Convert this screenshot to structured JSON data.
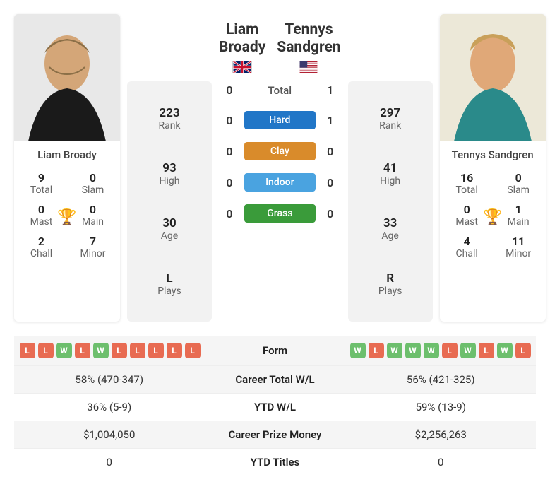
{
  "players": {
    "p1": {
      "name": "Liam Broady",
      "flag": "gb",
      "titles": {
        "total": {
          "val": "9",
          "lab": "Total"
        },
        "slam": {
          "val": "0",
          "lab": "Slam"
        },
        "mast": {
          "val": "0",
          "lab": "Mast"
        },
        "main": {
          "val": "0",
          "lab": "Main"
        },
        "chall": {
          "val": "2",
          "lab": "Chall"
        },
        "minor": {
          "val": "7",
          "lab": "Minor"
        }
      },
      "info": {
        "rank": {
          "val": "223",
          "lab": "Rank"
        },
        "high": {
          "val": "93",
          "lab": "High"
        },
        "age": {
          "val": "30",
          "lab": "Age"
        },
        "plays": {
          "val": "L",
          "lab": "Plays"
        }
      },
      "form": [
        "L",
        "L",
        "W",
        "L",
        "W",
        "L",
        "L",
        "L",
        "L",
        "L"
      ],
      "stats": {
        "career_wl": "58% (470-347)",
        "ytd_wl": "36% (5-9)",
        "prize": "$1,004,050",
        "ytd_titles": "0"
      },
      "photo_colors": {
        "bg": "#e8e8e8",
        "skin": "#d4a678",
        "shirt": "#1a1a1a",
        "hair": "#8b6f47"
      }
    },
    "p2": {
      "name": "Tennys Sandgren",
      "flag": "us",
      "titles": {
        "total": {
          "val": "16",
          "lab": "Total"
        },
        "slam": {
          "val": "0",
          "lab": "Slam"
        },
        "mast": {
          "val": "0",
          "lab": "Mast"
        },
        "main": {
          "val": "1",
          "lab": "Main"
        },
        "chall": {
          "val": "4",
          "lab": "Chall"
        },
        "minor": {
          "val": "11",
          "lab": "Minor"
        }
      },
      "info": {
        "rank": {
          "val": "297",
          "lab": "Rank"
        },
        "high": {
          "val": "41",
          "lab": "High"
        },
        "age": {
          "val": "33",
          "lab": "Age"
        },
        "plays": {
          "val": "R",
          "lab": "Plays"
        }
      },
      "form": [
        "W",
        "L",
        "W",
        "W",
        "W",
        "L",
        "W",
        "L",
        "W",
        "L"
      ],
      "stats": {
        "career_wl": "56% (421-325)",
        "ytd_wl": "59% (13-9)",
        "prize": "$2,256,263",
        "ytd_titles": "0"
      },
      "photo_colors": {
        "bg": "#ece8d8",
        "skin": "#e0a878",
        "shirt": "#2a8a8a",
        "hair": "#c9a05a"
      }
    }
  },
  "h2h": {
    "total_label": "Total",
    "total": {
      "p1": "0",
      "p2": "1"
    },
    "surfaces": [
      {
        "label": "Hard",
        "color": "#2176c7",
        "p1": "0",
        "p2": "1"
      },
      {
        "label": "Clay",
        "color": "#d98b2b",
        "p1": "0",
        "p2": "0"
      },
      {
        "label": "Indoor",
        "color": "#4aa3e0",
        "p1": "0",
        "p2": "0"
      },
      {
        "label": "Grass",
        "color": "#3a9b3a",
        "p1": "0",
        "p2": "0"
      }
    ]
  },
  "stat_labels": {
    "form": "Form",
    "career_wl": "Career Total W/L",
    "ytd_wl": "YTD W/L",
    "prize": "Career Prize Money",
    "ytd_titles": "YTD Titles"
  },
  "colors": {
    "win": "#6dbf6d",
    "loss": "#e86b52",
    "trophy": "#5a9fd4"
  }
}
